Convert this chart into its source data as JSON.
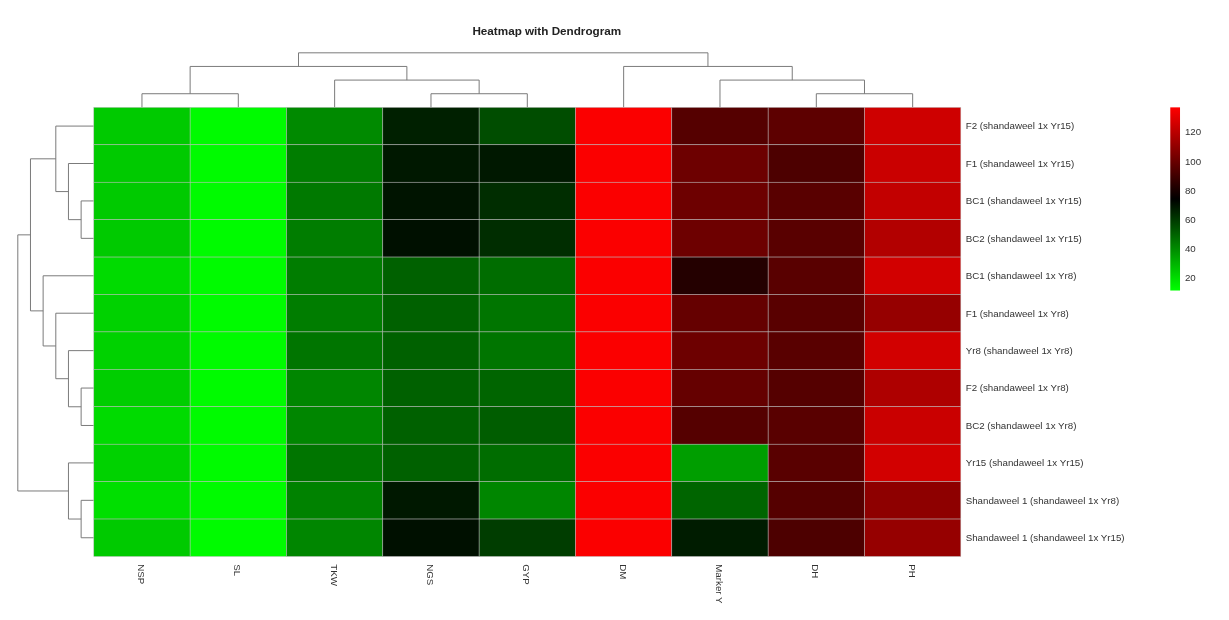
{
  "chart_data": {
    "type": "heatmap",
    "title": "Heatmap with Dendrogram",
    "categories": [
      "NSP",
      "SL",
      "TKW",
      "NGS",
      "GYP",
      "DM",
      "Marker Y",
      "DH",
      "PH"
    ],
    "y_categories": [
      "F2 (shandaweel 1x Yr15)",
      "F1 (shandaweel 1x Yr15)",
      "BC1 (shandaweel 1x Yr15)",
      "BC2 (shandaweel 1x Yr15)",
      "BC1 (shandaweel 1x Yr8)",
      "F1 (shandaweel 1x Yr8)",
      "Yr8 (shandaweel 1x Yr8)",
      "F2 (shandaweel 1x Yr8)",
      "BC2 (shandaweel 1x Yr8)",
      "Yr15 (shandaweel 1x Yr15)",
      "Shandaweel 1 (shandaweel 1x Yr8)",
      "Shandaweel 1 (shandaweel 1x Yr15)"
    ],
    "cells": [
      [
        24,
        12,
        40,
        66,
        55,
        136,
        95,
        97,
        125
      ],
      [
        24,
        12,
        43,
        68,
        68,
        136,
        101,
        93,
        124
      ],
      [
        24,
        12,
        44,
        69,
        63,
        136,
        101,
        96,
        122
      ],
      [
        24,
        12,
        43,
        70,
        63,
        136,
        101,
        96,
        118
      ],
      [
        20,
        12,
        43,
        50,
        47,
        136,
        83,
        96,
        126
      ],
      [
        22,
        12,
        43,
        50,
        45,
        136,
        99,
        96,
        111
      ],
      [
        22,
        12,
        45,
        50,
        45,
        136,
        101,
        96,
        126
      ],
      [
        23,
        12,
        41,
        50,
        49,
        136,
        99,
        95,
        117
      ],
      [
        20,
        12,
        41,
        50,
        51,
        136,
        95,
        96,
        124
      ],
      [
        22,
        12,
        45,
        50,
        47,
        136,
        35,
        96,
        126
      ],
      [
        19,
        12,
        42,
        68,
        41,
        136,
        49,
        95,
        109
      ],
      [
        24,
        12,
        41,
        70,
        59,
        136,
        67,
        93,
        111
      ]
    ],
    "clim": [
      11,
      137
    ],
    "cticks": [
      20,
      40,
      60,
      80,
      100,
      120
    ]
  }
}
